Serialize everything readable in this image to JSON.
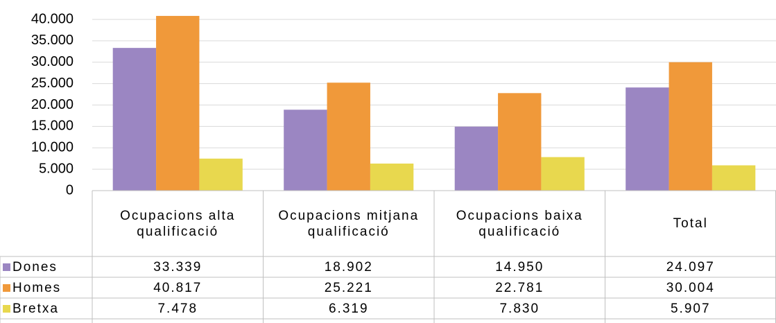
{
  "chart_data": {
    "type": "bar",
    "categories": [
      "Ocupacions alta qualificació",
      "Ocupacions mitjana qualificació",
      "Ocupacions baixa qualificació",
      "Total"
    ],
    "series": [
      {
        "name": "Dones",
        "color": "#9b86c2",
        "values": [
          33339,
          18902,
          14950,
          24097
        ],
        "value_labels": [
          "33.339",
          "18.902",
          "14.950",
          "24.097"
        ]
      },
      {
        "name": "Homes",
        "color": "#f0993a",
        "values": [
          40817,
          25221,
          22781,
          30004
        ],
        "value_labels": [
          "40.817",
          "25.221",
          "22.781",
          "30.004"
        ]
      },
      {
        "name": "Bretxa",
        "color": "#e8d84e",
        "values": [
          7478,
          6319,
          7830,
          5907
        ],
        "value_labels": [
          "7.478",
          "6.319",
          "7.830",
          "5.907"
        ]
      }
    ],
    "ylim": [
      0,
      40000
    ],
    "yticks": [
      0,
      {
        "value": 5000,
        "label": "5.000"
      },
      {
        "value": 10000,
        "label": "10.000"
      },
      {
        "value": 15000,
        "label": "15.000"
      },
      {
        "value": 20000,
        "label": "20.000"
      },
      {
        "value": 25000,
        "label": "25.000"
      },
      {
        "value": 30000,
        "label": "30.000"
      },
      {
        "value": 35000,
        "label": "35.000"
      },
      {
        "value": 40000,
        "label": "40.000"
      }
    ],
    "grid": true
  }
}
